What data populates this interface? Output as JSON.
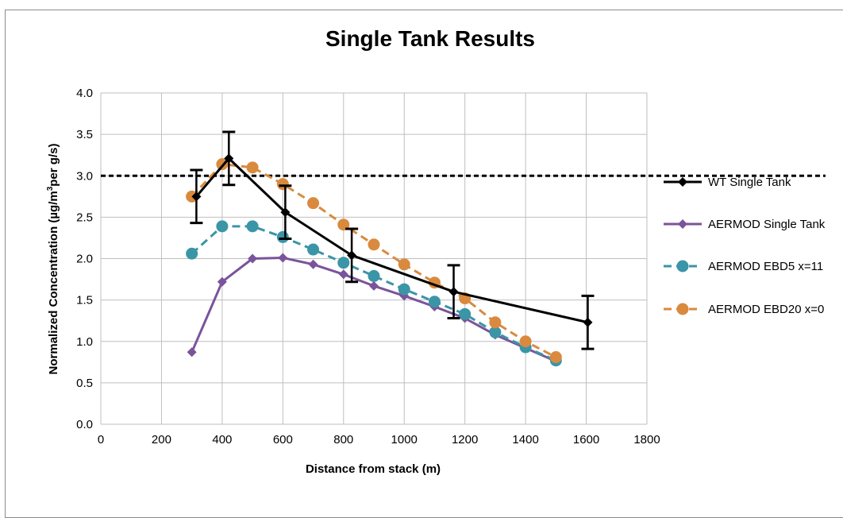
{
  "chart_data": {
    "type": "line",
    "title": "Single Tank Results",
    "xlabel": "Distance from stack (m)",
    "ylabel_prefix": "Normalized Concentration (µg/m",
    "ylabel_sup": "3",
    "ylabel_suffix": "per g/s)",
    "xlim": [
      0,
      1800
    ],
    "ylim": [
      0,
      4.0
    ],
    "x_ticks": [
      "0",
      "200",
      "400",
      "600",
      "800",
      "1000",
      "1200",
      "1400",
      "1600",
      "1800"
    ],
    "y_ticks": [
      "0.0",
      "0.5",
      "1.0",
      "1.5",
      "2.0",
      "2.5",
      "3.0",
      "3.5",
      "4.0"
    ],
    "grid": true,
    "legend_position": "right",
    "reference_line": {
      "y": 3.0,
      "style": "dashed",
      "color": "#000000"
    },
    "series": [
      {
        "name": "WT Single Tank",
        "color": "#000000",
        "line_style": "solid",
        "marker": "diamond",
        "x": [
          315,
          422,
          608,
          827,
          1163,
          1605
        ],
        "y": [
          2.75,
          3.21,
          2.56,
          2.04,
          1.6,
          1.23
        ],
        "error": [
          0.32,
          0.32,
          0.32,
          0.32,
          0.32,
          0.32
        ]
      },
      {
        "name": "AERMOD Single Tank",
        "color": "#7a549a",
        "line_style": "solid",
        "marker": "diamond",
        "x": [
          300,
          400,
          500,
          600,
          700,
          800,
          900,
          1000,
          1100,
          1200,
          1300,
          1400,
          1500
        ],
        "y": [
          0.87,
          1.72,
          2.0,
          2.01,
          1.93,
          1.81,
          1.67,
          1.55,
          1.42,
          1.28,
          1.08,
          0.92,
          0.76
        ]
      },
      {
        "name": "AERMOD EBD5 x=11",
        "color": "#3a95a7",
        "line_style": "dashed",
        "marker": "circle",
        "x": [
          300,
          400,
          500,
          600,
          700,
          800,
          900,
          1000,
          1100,
          1200,
          1300,
          1400,
          1500
        ],
        "y": [
          2.06,
          2.39,
          2.39,
          2.26,
          2.11,
          1.95,
          1.79,
          1.63,
          1.48,
          1.33,
          1.11,
          0.93,
          0.77
        ]
      },
      {
        "name": "AERMOD EBD20 x=0",
        "color": "#d98a3e",
        "line_style": "dashed",
        "marker": "circle",
        "x": [
          300,
          400,
          500,
          600,
          700,
          800,
          900,
          1000,
          1100,
          1200,
          1300,
          1400,
          1500
        ],
        "y": [
          2.75,
          3.14,
          3.1,
          2.9,
          2.67,
          2.41,
          2.17,
          1.93,
          1.71,
          1.52,
          1.23,
          1.0,
          0.81
        ]
      }
    ]
  }
}
